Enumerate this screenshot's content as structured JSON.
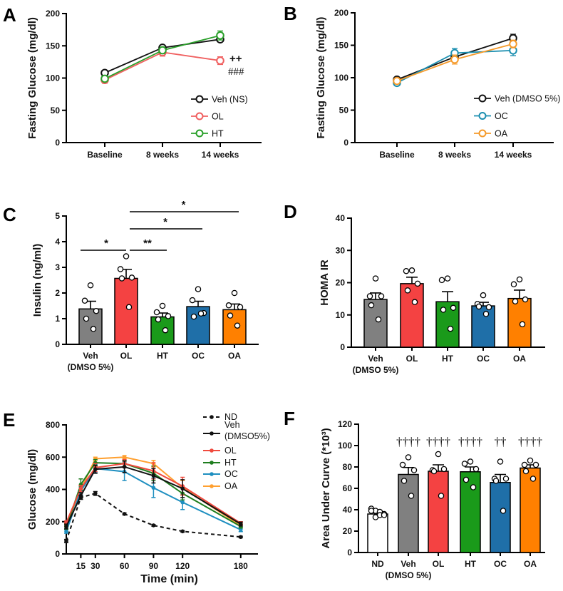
{
  "chart_data": [
    {
      "panel": "A",
      "type": "line",
      "ylabel": "Fasting Glucose (mg/dl)",
      "xlabel": "",
      "ylim": [
        0,
        200
      ],
      "yticks": [
        0,
        50,
        100,
        150,
        200
      ],
      "categories": [
        "Baseline",
        "8 weeks",
        "14 weeks"
      ],
      "series": [
        {
          "name": "Veh (NS)",
          "color": "#111111",
          "values": [
            108,
            147,
            160
          ],
          "errors": [
            3,
            4,
            4
          ]
        },
        {
          "name": "OL",
          "color": "#f06060",
          "values": [
            97,
            140,
            127
          ],
          "errors": [
            5,
            6,
            6
          ]
        },
        {
          "name": "HT",
          "color": "#2aa02a",
          "values": [
            99,
            143,
            166
          ],
          "errors": [
            4,
            5,
            7
          ]
        }
      ],
      "annotations": [
        {
          "text": "++",
          "at": "OL 14 weeks"
        },
        {
          "text": "###",
          "at": "OL 14 weeks"
        }
      ],
      "legend_position": "bottom-right",
      "grid": false
    },
    {
      "panel": "B",
      "type": "line",
      "ylabel": "Fasting Glucose (mg/dl)",
      "xlabel": "",
      "ylim": [
        0,
        200
      ],
      "yticks": [
        0,
        50,
        100,
        150,
        200
      ],
      "categories": [
        "Baseline",
        "8 weeks",
        "14 weeks"
      ],
      "series": [
        {
          "name": "Veh (DMSO 5%)",
          "color": "#111111",
          "values": [
            97,
            132,
            161
          ],
          "errors": [
            4,
            5,
            6
          ]
        },
        {
          "name": "OC",
          "color": "#1c8fb0",
          "values": [
            92,
            138,
            142
          ],
          "errors": [
            4,
            7,
            8
          ]
        },
        {
          "name": "OA",
          "color": "#f59a2a",
          "values": [
            95,
            128,
            152
          ],
          "errors": [
            4,
            7,
            6
          ]
        }
      ],
      "legend_position": "bottom-right",
      "grid": false
    },
    {
      "panel": "C",
      "type": "bar",
      "ylabel": "Insulin (ng/ml)",
      "xlabel": "",
      "ylim": [
        0,
        5
      ],
      "yticks": [
        0,
        1,
        2,
        3,
        4,
        5
      ],
      "categories": [
        "Veh",
        "OL",
        "HT",
        "OC",
        "OA"
      ],
      "sublabels": [
        "(DMSO 5%)",
        "",
        "",
        "",
        ""
      ],
      "colors": [
        "#808080",
        "#f44242",
        "#1a9a1a",
        "#1f6fa8",
        "#ff8000"
      ],
      "values": [
        1.38,
        2.57,
        1.07,
        1.47,
        1.35
      ],
      "errors": [
        0.3,
        0.35,
        0.15,
        0.21,
        0.22
      ],
      "points": [
        [
          2.3,
          1.7,
          1.3,
          1.0,
          0.6
        ],
        [
          3.43,
          2.93,
          2.6,
          2.57,
          1.45
        ],
        [
          1.5,
          1.25,
          1.1,
          0.97,
          0.55
        ],
        [
          2.15,
          1.72,
          1.22,
          1.08,
          1.2
        ],
        [
          2.0,
          1.52,
          1.45,
          1.12,
          0.73
        ]
      ],
      "significance": [
        {
          "from": 0,
          "to": 1,
          "label": "*"
        },
        {
          "from": 1,
          "to": 2,
          "label": "**"
        },
        {
          "from": 1,
          "to": 3,
          "label": "*"
        },
        {
          "from": 1,
          "to": 4,
          "label": "*"
        }
      ],
      "grid": false
    },
    {
      "panel": "D",
      "type": "bar",
      "ylabel": "HOMA IR",
      "xlabel": "",
      "ylim": [
        0,
        40
      ],
      "yticks": [
        0,
        10,
        20,
        30,
        40
      ],
      "categories": [
        "Veh",
        "OL",
        "HT",
        "OC",
        "OA"
      ],
      "sublabels": [
        "(DMSO 5%)",
        "",
        "",
        "",
        ""
      ],
      "colors": [
        "#808080",
        "#f44242",
        "#1a9a1a",
        "#1f6fa8",
        "#ff8000"
      ],
      "values": [
        14.8,
        19.7,
        14.1,
        12.8,
        15.1
      ],
      "errors": [
        2.0,
        2.0,
        3.1,
        1.1,
        2.6
      ],
      "points": [
        [
          21.3,
          15.8,
          15.8,
          13,
          8.6
        ],
        [
          23.8,
          23.6,
          19.7,
          17.6,
          14
        ],
        [
          21.3,
          20.8,
          12.2,
          11.6,
          5.7
        ],
        [
          16.1,
          13.4,
          12.4,
          12.6,
          10.3
        ],
        [
          21,
          19.5,
          14.8,
          14.2,
          7.1
        ]
      ],
      "grid": false
    },
    {
      "panel": "E",
      "type": "line",
      "ylabel": "Glucose (mg/dl)",
      "xlabel": "Time (min)",
      "ylim": [
        0,
        800
      ],
      "yticks": [
        0,
        200,
        400,
        600,
        800
      ],
      "xlim": [
        0,
        200
      ],
      "xticks": [
        15,
        30,
        60,
        90,
        120,
        180
      ],
      "x": [
        0,
        15,
        30,
        60,
        90,
        120,
        180
      ],
      "series": [
        {
          "name": "ND",
          "color": "#111111",
          "dashed": true,
          "values": [
            80,
            350,
            375,
            248,
            177,
            140,
            105
          ],
          "errors": [
            10,
            12,
            12,
            6,
            5,
            5,
            5
          ]
        },
        {
          "name": "Veh (DMSO5%)",
          "color": "#111111",
          "values": [
            170,
            360,
            525,
            540,
            485,
            405,
            185
          ],
          "errors": [
            15,
            20,
            25,
            35,
            45,
            55,
            12
          ]
        },
        {
          "name": "OL",
          "color": "#f04a3e",
          "values": [
            195,
            405,
            535,
            560,
            515,
            420,
            190
          ],
          "errors": [
            10,
            20,
            25,
            25,
            50,
            55,
            10
          ]
        },
        {
          "name": "HT",
          "color": "#1e7d1e",
          "values": [
            165,
            430,
            565,
            560,
            500,
            375,
            170
          ],
          "errors": [
            12,
            35,
            20,
            20,
            45,
            40,
            10
          ]
        },
        {
          "name": "OC",
          "color": "#1e8fc0",
          "values": [
            140,
            390,
            530,
            510,
            410,
            320,
            150
          ],
          "errors": [
            12,
            25,
            25,
            55,
            60,
            45,
            12
          ]
        },
        {
          "name": "OA",
          "color": "#ffa030",
          "values": [
            180,
            400,
            590,
            600,
            560,
            410,
            175
          ],
          "errors": [
            10,
            20,
            10,
            10,
            20,
            45,
            10
          ]
        }
      ],
      "legend_position": "top-right",
      "grid": false
    },
    {
      "panel": "F",
      "type": "bar",
      "ylabel": "Area Under Curve (*10³)",
      "xlabel": "",
      "ylim": [
        0,
        120
      ],
      "yticks": [
        0,
        20,
        40,
        60,
        80,
        100,
        120
      ],
      "categories": [
        "ND",
        "Veh",
        "OL",
        "HT",
        "OC",
        "OA"
      ],
      "sublabels": [
        "",
        "(DMSO 5%)",
        "",
        "",
        "",
        ""
      ],
      "colors": [
        "#ffffff",
        "#808080",
        "#f44242",
        "#1a9a1a",
        "#1f6fa8",
        "#ff8000"
      ],
      "values": [
        36,
        73,
        76,
        75.5,
        65.5,
        79
      ],
      "errors": [
        1.2,
        6.5,
        6.0,
        4.5,
        7.5,
        3.0
      ],
      "points": [
        [
          41,
          39,
          38,
          36,
          39,
          33,
          35,
          35
        ],
        [
          89,
          82,
          77,
          67,
          53
        ],
        [
          92,
          77,
          78,
          76,
          53
        ],
        [
          85,
          83,
          78,
          68,
          61
        ],
        [
          85,
          69,
          69,
          67,
          39
        ],
        [
          86,
          82,
          82,
          76,
          69
        ]
      ],
      "bar_annotations": [
        "",
        "††††",
        "††††",
        "††††",
        "††",
        "††††"
      ],
      "grid": false
    }
  ]
}
